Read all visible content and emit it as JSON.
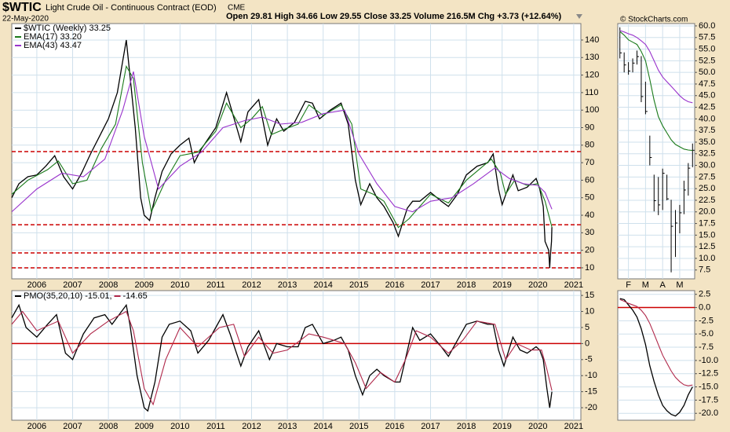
{
  "chart_data": [
    {
      "type": "line",
      "title": "$WTIC",
      "subtitle": "Light Crude Oil - Continuous Contract (EOD)",
      "exchange": "CME",
      "date": "22-May-2020",
      "quote": "Open 29.81 High 34.66 Low 29.55 Close 33.25 Volume 216.5M Chg +3.73 (+12.64%)",
      "credit": "© StockCharts.com",
      "xlim": [
        2005.3,
        2021.2
      ],
      "xticks": [
        2006,
        2007,
        2008,
        2009,
        2010,
        2011,
        2012,
        2013,
        2014,
        2015,
        2016,
        2017,
        2018,
        2019,
        2020,
        2021
      ],
      "ylim": [
        3.7,
        149.4
      ],
      "yticks": [
        10,
        20,
        30,
        40,
        50,
        60,
        70,
        80,
        90,
        100,
        110,
        120,
        130,
        140
      ],
      "grid": true,
      "legend": "top-left",
      "hlines": [
        76.3,
        34.6,
        18.5,
        10
      ],
      "hline_color": "#cc0000",
      "hline_style": "dashed",
      "series": [
        {
          "name": "$WTIC (Weekly) 33.25",
          "color": "#000000",
          "x": [
            2005.3,
            2005.5,
            2005.75,
            2006.0,
            2006.25,
            2006.5,
            2006.75,
            2007.0,
            2007.25,
            2007.5,
            2007.75,
            2008.0,
            2008.25,
            2008.5,
            2008.6,
            2008.75,
            2008.9,
            2009.0,
            2009.15,
            2009.3,
            2009.5,
            2009.75,
            2010.0,
            2010.25,
            2010.4,
            2010.6,
            2010.8,
            2011.0,
            2011.3,
            2011.5,
            2011.7,
            2011.9,
            2012.2,
            2012.45,
            2012.7,
            2012.9,
            2013.2,
            2013.5,
            2013.7,
            2013.9,
            2014.2,
            2014.5,
            2014.7,
            2014.9,
            2015.05,
            2015.3,
            2015.5,
            2015.7,
            2015.95,
            2016.1,
            2016.35,
            2016.5,
            2016.7,
            2017.0,
            2017.3,
            2017.5,
            2017.75,
            2018.0,
            2018.3,
            2018.6,
            2018.75,
            2018.9,
            2019.0,
            2019.3,
            2019.45,
            2019.7,
            2019.95,
            2020.05,
            2020.15,
            2020.2,
            2020.3,
            2020.33,
            2020.35,
            2020.38,
            2020.39
          ],
          "values": [
            50,
            58,
            62,
            63,
            68,
            74,
            62,
            55,
            64,
            75,
            85,
            95,
            110,
            140,
            120,
            90,
            50,
            40,
            37,
            50,
            65,
            75,
            80,
            84,
            70,
            78,
            84,
            90,
            110,
            96,
            82,
            99,
            106,
            80,
            95,
            88,
            93,
            105,
            104,
            95,
            100,
            104,
            92,
            60,
            46,
            58,
            50,
            45,
            36,
            28,
            44,
            48,
            48,
            53,
            48,
            45,
            52,
            63,
            68,
            70,
            75,
            55,
            46,
            63,
            54,
            56,
            61,
            55,
            45,
            25,
            20,
            10,
            17,
            25,
            33.25
          ]
        },
        {
          "name": "EMA(17) 33.20",
          "color": "#1a7a1a",
          "x": [
            2005.3,
            2005.75,
            2006.3,
            2006.6,
            2007.0,
            2007.4,
            2007.8,
            2008.2,
            2008.5,
            2008.7,
            2008.95,
            2009.2,
            2009.6,
            2010.0,
            2010.5,
            2011.0,
            2011.3,
            2011.7,
            2012.0,
            2012.3,
            2012.55,
            2012.9,
            2013.3,
            2013.6,
            2014.0,
            2014.5,
            2014.8,
            2015.05,
            2015.4,
            2015.7,
            2016.1,
            2016.4,
            2017.0,
            2017.5,
            2018.0,
            2018.7,
            2018.95,
            2019.1,
            2019.35,
            2019.7,
            2020.0,
            2020.2,
            2020.39
          ],
          "values": [
            52,
            60,
            66,
            71,
            58,
            60,
            78,
            92,
            125,
            118,
            70,
            42,
            60,
            74,
            76,
            88,
            104,
            90,
            95,
            102,
            86,
            89,
            92,
            103,
            97,
            103,
            92,
            55,
            52,
            48,
            33,
            38,
            52,
            47,
            60,
            72,
            64,
            52,
            60,
            57,
            58,
            48,
            33.2
          ]
        },
        {
          "name": "EMA(43) 43.47",
          "color": "#9933cc",
          "x": [
            2005.3,
            2006.0,
            2006.7,
            2007.3,
            2007.9,
            2008.4,
            2008.7,
            2009.0,
            2009.4,
            2010.0,
            2010.6,
            2011.2,
            2011.8,
            2012.3,
            2012.8,
            2013.4,
            2014.0,
            2014.6,
            2015.0,
            2015.5,
            2016.0,
            2016.5,
            2017.0,
            2017.6,
            2018.2,
            2018.8,
            2019.2,
            2019.6,
            2020.0,
            2020.2,
            2020.39
          ],
          "values": [
            42,
            55,
            64,
            62,
            72,
            100,
            122,
            85,
            55,
            68,
            76,
            90,
            94,
            96,
            92,
            93,
            98,
            100,
            75,
            58,
            45,
            42,
            48,
            50,
            58,
            67,
            61,
            58,
            57,
            53,
            43.47
          ]
        }
      ]
    },
    {
      "type": "ohlc",
      "categories": [
        null,
        null,
        "F",
        null,
        null,
        null,
        "M",
        null,
        null,
        null,
        "A",
        null,
        null,
        null,
        "M",
        null,
        null,
        null
      ],
      "ylim": [
        5.6,
        60.5
      ],
      "yticks": [
        {
          "value": 7.5,
          "label": "7.5"
        },
        {
          "value": 10,
          "label": "10.0"
        },
        12.5,
        {
          "value": 15,
          "label": "15.0"
        },
        17.5,
        {
          "value": 20,
          "label": "20.0"
        },
        22.5,
        {
          "value": 25,
          "label": "25.0"
        },
        27.5,
        {
          "value": 30,
          "label": "30.0"
        },
        32.5,
        {
          "value": 35,
          "label": "35.0"
        },
        37.5,
        {
          "value": 40,
          "label": "40.0"
        },
        42.5,
        {
          "value": 45,
          "label": "45.0"
        },
        47.5,
        {
          "value": 50,
          "label": "50.0"
        },
        52.5,
        {
          "value": 55,
          "label": "55.0"
        },
        57.5,
        {
          "value": 60,
          "label": "60.0"
        }
      ],
      "grid": true,
      "series": [
        {
          "color": "#000000",
          "high": [
            59.7,
            54.3,
            52.2,
            53.0,
            54.7,
            53.5,
            48.0,
            36.4,
            28.0,
            27.5,
            29.3,
            28.0,
            22.6,
            20.4,
            21.5,
            26.7,
            30.5,
            34.7
          ],
          "low": [
            53.0,
            50.0,
            49.5,
            50.0,
            51.7,
            43.6,
            41.0,
            30.0,
            20.1,
            19.3,
            20.4,
            22.5,
            7.0,
            10.3,
            15.4,
            19.5,
            23.5,
            29.6
          ],
          "values": [
            54.2,
            51.6,
            50.3,
            52.0,
            53.4,
            44.8,
            41.6,
            31.7,
            22.4,
            21.5,
            28.3,
            22.8,
            16.9,
            17.6,
            19.8,
            24.7,
            29.4,
            33.25
          ]
        },
        {
          "color": "#1a7a1a",
          "values": [
            58.8,
            58.0,
            57.0,
            56.5,
            56.0,
            54.5,
            52.5,
            48.5,
            44.0,
            40.5,
            38.5,
            37.0,
            35.5,
            34.5,
            34.0,
            33.5,
            33.3,
            33.2
          ]
        },
        {
          "color": "#9933cc",
          "values": [
            59.0,
            58.7,
            58.3,
            58.0,
            57.5,
            56.8,
            56.0,
            54.5,
            52.5,
            50.5,
            49.0,
            48.0,
            47.0,
            46.0,
            45.0,
            44.2,
            43.7,
            43.47
          ]
        }
      ]
    },
    {
      "type": "line",
      "xlim": [
        2005.3,
        2021.2
      ],
      "xticks": [
        2006,
        2007,
        2008,
        2009,
        2010,
        2011,
        2012,
        2013,
        2014,
        2015,
        2016,
        2017,
        2018,
        2019,
        2020,
        2021
      ],
      "ylim": [
        -23.9,
        16.5
      ],
      "yticks": [
        -20,
        -15,
        -10,
        -5,
        0,
        5,
        10,
        15
      ],
      "grid": true,
      "legend": "top-left-inline",
      "hlines": [
        0
      ],
      "hline_color": "#cc0000",
      "hline_style": "solid",
      "series": [
        {
          "name": "PMO(35,20,10) -15.01,",
          "color": "#000000",
          "x": [
            2005.3,
            2005.5,
            2005.7,
            2006.0,
            2006.3,
            2006.55,
            2006.8,
            2007.0,
            2007.3,
            2007.6,
            2007.9,
            2008.1,
            2008.3,
            2008.5,
            2008.6,
            2008.8,
            2009.0,
            2009.1,
            2009.3,
            2009.5,
            2009.7,
            2010.0,
            2010.3,
            2010.5,
            2010.8,
            2011.0,
            2011.2,
            2011.4,
            2011.7,
            2011.9,
            2012.2,
            2012.5,
            2012.7,
            2013.0,
            2013.3,
            2013.5,
            2013.7,
            2014.0,
            2014.3,
            2014.5,
            2014.7,
            2014.9,
            2015.1,
            2015.3,
            2015.5,
            2015.7,
            2016.0,
            2016.15,
            2016.4,
            2016.5,
            2016.7,
            2017.0,
            2017.3,
            2017.5,
            2017.8,
            2018.0,
            2018.3,
            2018.6,
            2018.75,
            2018.9,
            2019.05,
            2019.3,
            2019.5,
            2019.7,
            2019.95,
            2020.05,
            2020.15,
            2020.25,
            2020.33,
            2020.39
          ],
          "values": [
            8,
            12,
            5,
            2,
            6,
            9,
            -3,
            -5,
            3,
            8,
            9,
            6,
            9,
            12,
            6,
            -10,
            -20,
            -21,
            -12,
            2,
            6,
            7,
            4,
            -3,
            1,
            5,
            9,
            3,
            -7,
            -1,
            4,
            -5,
            0,
            -1,
            -1,
            5,
            6,
            0,
            1,
            2,
            -2,
            -10,
            -16,
            -10,
            -8,
            -10,
            -12,
            -12,
            0,
            5,
            1,
            3,
            -1,
            -4,
            2,
            6,
            7,
            6,
            6,
            -2,
            -7,
            2,
            -2,
            -3,
            -1,
            -2,
            -5,
            -14,
            -20,
            -15.01
          ]
        },
        {
          "name": "-14.65",
          "color": "#b0284a",
          "x": [
            2005.3,
            2005.6,
            2006.0,
            2006.6,
            2007.0,
            2007.5,
            2008.0,
            2008.5,
            2008.7,
            2009.0,
            2009.25,
            2009.6,
            2010.0,
            2010.5,
            2011.1,
            2011.5,
            2011.8,
            2012.2,
            2012.6,
            2013.0,
            2013.6,
            2014.0,
            2014.6,
            2014.9,
            2015.2,
            2015.6,
            2016.0,
            2016.3,
            2016.6,
            2017.0,
            2017.5,
            2017.9,
            2018.3,
            2018.8,
            2019.1,
            2019.4,
            2019.8,
            2020.1,
            2020.25,
            2020.39
          ],
          "values": [
            6,
            10,
            4,
            7,
            -3,
            3,
            7,
            10,
            4,
            -14,
            -19,
            -5,
            5,
            -1,
            5,
            6,
            -4,
            2,
            -3,
            -2,
            3,
            2,
            0,
            -6,
            -14,
            -9,
            -12,
            -5,
            4,
            2,
            -3,
            1,
            7,
            6,
            -5,
            0,
            -2,
            -2,
            -8,
            -14.65
          ]
        }
      ]
    },
    {
      "type": "line",
      "categories": [
        null,
        null,
        null,
        null,
        null,
        null,
        null,
        null,
        null,
        null,
        null,
        null,
        null,
        null,
        null,
        null,
        null,
        null
      ],
      "ylim": [
        -21.3,
        3.2
      ],
      "yticks": [
        {
          "value": -20,
          "label": "-20.0"
        },
        -17.5,
        {
          "value": -15,
          "label": "-15.0"
        },
        -12.5,
        {
          "value": -10,
          "label": "-10.0"
        },
        -7.5,
        {
          "value": -5,
          "label": "-5.0"
        },
        -2.5,
        {
          "value": 0,
          "label": "0.0"
        },
        2.5
      ],
      "grid": true,
      "hlines": [
        0
      ],
      "hline_color": "#cc0000",
      "hline_style": "solid",
      "series": [
        {
          "color": "#000000",
          "values": [
            1.7,
            1.5,
            0.5,
            -0.5,
            -1.8,
            -4,
            -7,
            -11,
            -14,
            -16.5,
            -18.5,
            -19.5,
            -20.2,
            -20.5,
            -19.8,
            -18.5,
            -16.5,
            -15.0
          ]
        },
        {
          "color": "#b0284a",
          "values": [
            1.5,
            1.2,
            0.8,
            0.5,
            0.2,
            -0.5,
            -1.5,
            -3,
            -5,
            -7,
            -9,
            -10.5,
            -12,
            -13.2,
            -14,
            -14.6,
            -14.8,
            -14.65
          ]
        }
      ]
    }
  ]
}
